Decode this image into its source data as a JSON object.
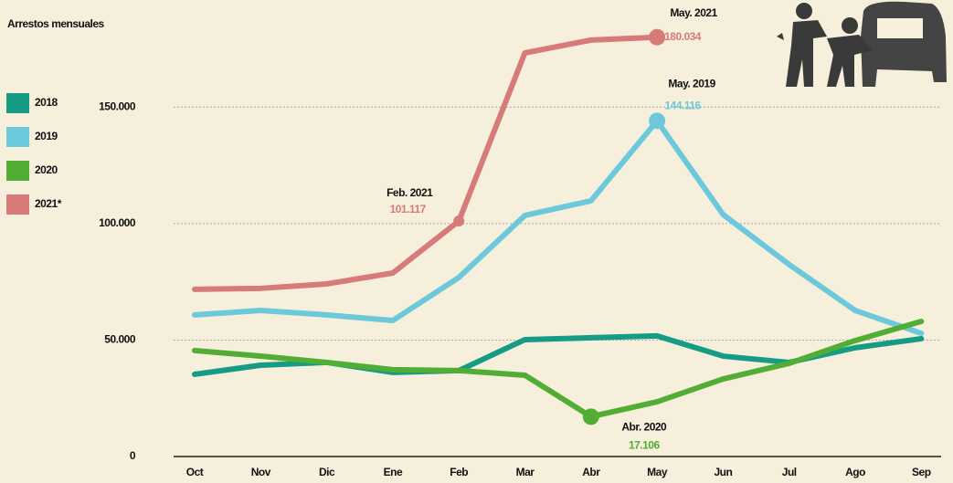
{
  "chart_data": {
    "type": "line",
    "title": "Arrestos mensuales",
    "categories": [
      "Oct",
      "Nov",
      "Dic",
      "Ene",
      "Feb",
      "Mar",
      "Abr",
      "May",
      "Jun",
      "Jul",
      "Ago",
      "Sep"
    ],
    "series": [
      {
        "name": "2018",
        "color": "#169b85",
        "values": [
          35300,
          39200,
          40400,
          36100,
          36900,
          50200,
          51000,
          51800,
          43100,
          40400,
          46700,
          50600
        ]
      },
      {
        "name": "2019",
        "color": "#6cc8db",
        "values": [
          60800,
          62700,
          60800,
          58400,
          76900,
          103500,
          109800,
          144116,
          103900,
          82400,
          62700,
          52900
        ],
        "value_labels": [
          null,
          null,
          null,
          null,
          null,
          null,
          null,
          "144.116",
          null,
          null,
          null,
          null
        ],
        "callouts": [
          null,
          null,
          null,
          null,
          null,
          null,
          null,
          "May. 2019",
          null,
          null,
          null,
          null
        ]
      },
      {
        "name": "2020",
        "color": "#52ad34",
        "values": [
          45500,
          43100,
          40400,
          37300,
          36900,
          34900,
          17106,
          23500,
          33300,
          40000,
          49800,
          58000
        ],
        "value_labels": [
          null,
          null,
          null,
          null,
          null,
          null,
          "17.106",
          null,
          null,
          null,
          null,
          null
        ],
        "callouts": [
          null,
          null,
          null,
          null,
          null,
          null,
          "Abr. 2020",
          null,
          null,
          null,
          null,
          null
        ]
      },
      {
        "name": "2021*",
        "color": "#d67b78",
        "values": [
          71800,
          72200,
          74100,
          78800,
          101117,
          173300,
          178800,
          180034,
          null,
          null,
          null,
          null
        ],
        "value_labels": [
          null,
          null,
          null,
          null,
          "101.117",
          null,
          null,
          "180.034",
          null,
          null,
          null,
          null
        ],
        "callouts": [
          null,
          null,
          null,
          null,
          "Feb. 2021",
          null,
          null,
          "May. 2021",
          null,
          null,
          null,
          null
        ]
      }
    ],
    "ylim": [
      0,
      196000
    ],
    "yticks": [
      0,
      {
        "value": 50000,
        "label": "50.000"
      },
      {
        "value": 100000,
        "label": "100.000"
      },
      {
        "value": 150000,
        "label": "150.000"
      }
    ],
    "grid": true
  }
}
